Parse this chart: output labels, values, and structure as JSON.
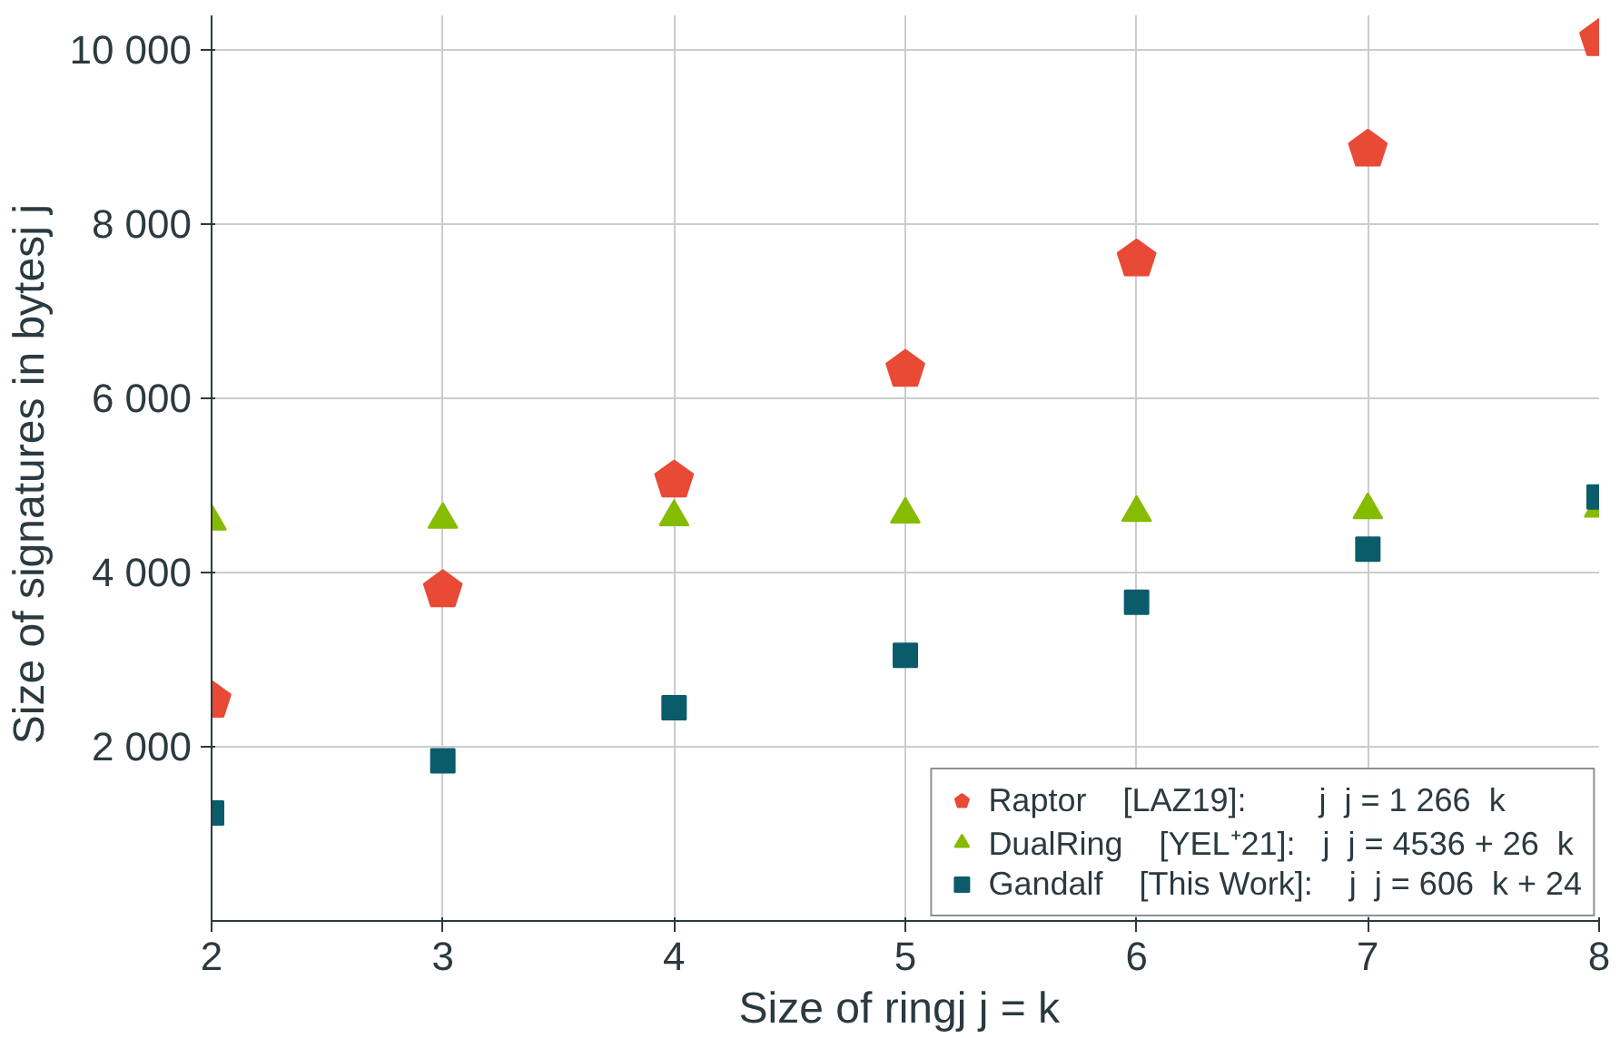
{
  "chart_data": {
    "type": "scatter",
    "xlabel": "Size of ringj  j = k",
    "ylabel": "Size of signatures in bytesj  j",
    "x": [
      2,
      3,
      4,
      5,
      6,
      7,
      8
    ],
    "series": [
      {
        "name": "Raptor    [LAZ19]:        j  j = 1 266  k",
        "color": "#e84a36",
        "values": [
          2530,
          3800,
          5060,
          6330,
          7600,
          8860,
          10130
        ]
      },
      {
        "name": "DualRing    [YEL⁺21]:   j  j = 4536 + 26  k",
        "color": "#86bc00",
        "marker": "triangle",
        "values": [
          4590,
          4610,
          4640,
          4670,
          4690,
          4720,
          4740
        ]
      },
      {
        "name": "Gandalf    [This Work]:    j  j = 606  k + 24",
        "color": "#0b5c6b",
        "marker": "square",
        "values": [
          1240,
          1840,
          2450,
          3050,
          3660,
          4270,
          4870
        ]
      }
    ],
    "xlim": [
      2,
      8
    ],
    "ylim": [
      0,
      10400
    ],
    "xticks": [
      2,
      3,
      4,
      5,
      6,
      7,
      8
    ],
    "yticks": [
      {
        "value": 2000,
        "label": "2 000"
      },
      {
        "value": 4000,
        "label": "4 000"
      },
      {
        "value": 6000,
        "label": "6 000"
      },
      {
        "value": 8000,
        "label": "8 000"
      },
      {
        "value": 10000,
        "label": "10 000"
      }
    ],
    "grid": true,
    "legend": "bottom right"
  }
}
